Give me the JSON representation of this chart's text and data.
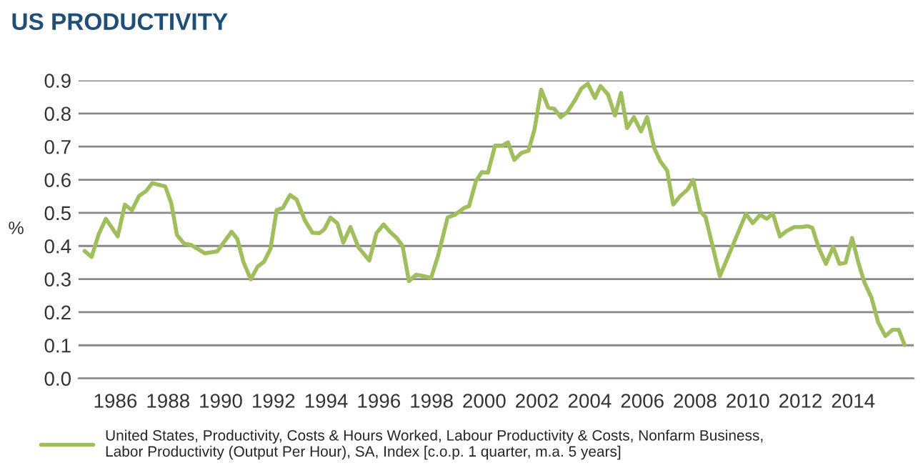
{
  "chart_data": {
    "type": "line",
    "title": "US PRODUCTIVITY",
    "ylabel": "%",
    "x": [
      1984.83,
      1985.1,
      1985.37,
      1985.64,
      1986.09,
      1986.36,
      1986.63,
      1986.9,
      1987.17,
      1987.4,
      1987.89,
      1988.12,
      1988.34,
      1988.61,
      1988.88,
      1989.39,
      1989.87,
      1990.41,
      1990.63,
      1990.86,
      1991.14,
      1991.4,
      1991.64,
      1991.89,
      1992.12,
      1992.36,
      1992.63,
      1992.88,
      1993.2,
      1993.48,
      1993.75,
      1993.93,
      1994.16,
      1994.43,
      1994.65,
      1994.92,
      1995.23,
      1995.64,
      1995.91,
      1996.18,
      1996.42,
      1996.68,
      1996.9,
      1997.14,
      1997.41,
      1997.71,
      1997.98,
      1998.25,
      1998.61,
      1998.88,
      1999.24,
      1999.42,
      1999.69,
      1999.91,
      2000.14,
      2000.41,
      2000.68,
      2000.9,
      2001.14,
      2001.41,
      2001.68,
      2001.91,
      2002.16,
      2002.43,
      2002.66,
      2002.9,
      2003.15,
      2003.44,
      2003.69,
      2003.93,
      2004.2,
      2004.41,
      2004.7,
      2004.96,
      2005.19,
      2005.42,
      2005.68,
      2005.95,
      2006.18,
      2006.45,
      2006.68,
      2006.94,
      2007.17,
      2007.44,
      2007.71,
      2007.93,
      2008.2,
      2008.4,
      2008.94,
      2009.46,
      2009.93,
      2010.19,
      2010.47,
      2010.72,
      2010.95,
      2011.22,
      2011.49,
      2011.77,
      2012.03,
      2012.27,
      2012.45,
      2012.7,
      2012.97,
      2013.24,
      2013.48,
      2013.71,
      2013.96,
      2014.2,
      2014.43,
      2014.69,
      2014.95,
      2015.22,
      2015.5,
      2015.73,
      2015.95
    ],
    "series": [
      {
        "name": "United States, Productivity, Costs & Hours Worked, Labour Productivity & Costs, Nonfarm Business, Labor Productivity (Output Per Hour), SA, Index [c.o.p. 1 quarter, m.a. 5 years]",
        "color": "#9fbe5c",
        "values": [
          0.385,
          0.367,
          0.436,
          0.482,
          0.429,
          0.525,
          0.508,
          0.551,
          0.566,
          0.59,
          0.58,
          0.53,
          0.433,
          0.407,
          0.403,
          0.378,
          0.384,
          0.443,
          0.421,
          0.352,
          0.299,
          0.338,
          0.352,
          0.392,
          0.508,
          0.515,
          0.554,
          0.54,
          0.476,
          0.44,
          0.439,
          0.45,
          0.486,
          0.468,
          0.41,
          0.457,
          0.395,
          0.356,
          0.439,
          0.465,
          0.443,
          0.424,
          0.4,
          0.294,
          0.313,
          0.309,
          0.303,
          0.371,
          0.486,
          0.494,
          0.515,
          0.52,
          0.597,
          0.623,
          0.621,
          0.703,
          0.703,
          0.713,
          0.66,
          0.681,
          0.688,
          0.753,
          0.872,
          0.818,
          0.814,
          0.789,
          0.804,
          0.84,
          0.876,
          0.89,
          0.847,
          0.883,
          0.857,
          0.794,
          0.862,
          0.756,
          0.789,
          0.746,
          0.789,
          0.696,
          0.656,
          0.628,
          0.525,
          0.551,
          0.57,
          0.599,
          0.504,
          0.487,
          0.309,
          0.407,
          0.497,
          0.469,
          0.494,
          0.482,
          0.498,
          0.429,
          0.446,
          0.457,
          0.457,
          0.46,
          0.455,
          0.393,
          0.346,
          0.397,
          0.346,
          0.349,
          0.424,
          0.349,
          0.289,
          0.245,
          0.169,
          0.128,
          0.147,
          0.147,
          0.101
        ]
      }
    ],
    "xlim": [
      1984.6,
      2016.3
    ],
    "xticks": [
      1986,
      1988,
      1990,
      1992,
      1994,
      1996,
      1998,
      2000,
      2002,
      2004,
      2006,
      2008,
      2010,
      2012,
      2014
    ],
    "ylim": [
      0,
      0.9
    ],
    "yticks": [
      {
        "value": 0,
        "label": "0.0"
      },
      0.1,
      0.2,
      0.3,
      0.4,
      0.5,
      0.6,
      0.7,
      0.8,
      0.9
    ],
    "grid": "y",
    "legend": "bottom",
    "marker": "none",
    "line_style": "solid"
  }
}
